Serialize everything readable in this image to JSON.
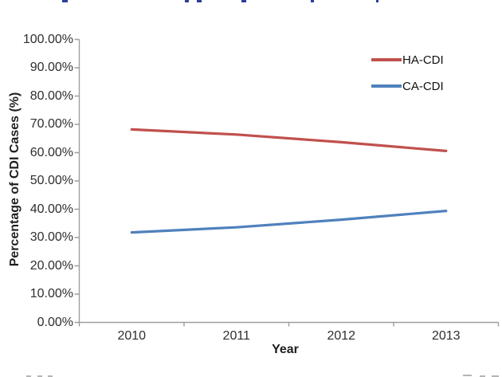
{
  "chart_data": {
    "type": "line",
    "title": "",
    "categories": [
      "2010",
      "2011",
      "2012",
      "2013"
    ],
    "series": [
      {
        "name": "HA-CDI",
        "color": "#C0504D",
        "values": [
          68.2,
          66.4,
          63.7,
          60.6
        ]
      },
      {
        "name": "CA-CDI",
        "color": "#4F81BD",
        "values": [
          31.8,
          33.6,
          36.3,
          39.4
        ]
      }
    ],
    "xlabel": "Year",
    "ylabel": "Percentage of CDI Cases (%)",
    "ylim": [
      0,
      100
    ],
    "y_tick_step": 10,
    "y_tick_labels": [
      "0.00%",
      "10.00%",
      "20.00%",
      "30.00%",
      "40.00%",
      "50.00%",
      "60.00%",
      "70.00%",
      "80.00%",
      "90.00%",
      "100.00%"
    ],
    "grid": false,
    "legend_position": "top-right",
    "axis_color": "#9e9e9e",
    "label_color": "#2e2e2e",
    "line_width": 3.2
  },
  "artifacts": {
    "top_cropped_text_color": "#2b3f97",
    "bottom_cropped_text_color": "#b5b5b5"
  }
}
